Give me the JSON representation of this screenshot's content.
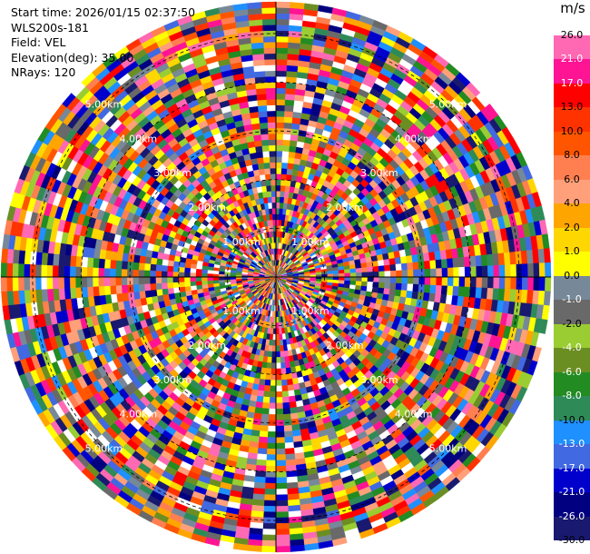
{
  "info": {
    "start_time": "Start time: 2026/01/15 02:37:50",
    "instrument": "WLS200s-181",
    "field": "Field: VEL",
    "elevation": "Elevation(deg): 35.00",
    "nrays": "NRays: 120"
  },
  "colorbar": {
    "unit": "m/s",
    "ticks": [
      "26.0",
      "21.0",
      "17.0",
      "13.0",
      "10.0",
      "8.0",
      "6.0",
      "4.0",
      "2.0",
      "1.0",
      "0.0",
      "-1.0",
      "-2.0",
      "-4.0",
      "-6.0",
      "-8.0",
      "-10.0",
      "-13.0",
      "-17.0",
      "-21.0",
      "-26.0",
      "-30.0"
    ],
    "colors": [
      "#ff69b4",
      "#ff1493",
      "#ff0000",
      "#ff3300",
      "#ff5500",
      "#ff7f50",
      "#ffa07a",
      "#ffa500",
      "#ffd700",
      "#ffff00",
      "#778899",
      "#696969",
      "#9acd32",
      "#6b8e23",
      "#228b22",
      "#2e8b57",
      "#1e90ff",
      "#4169e1",
      "#0000cd",
      "#000080",
      "#191970"
    ]
  },
  "chart_data": {
    "type": "heatmap",
    "projection": "polar-ppi",
    "field": "VEL",
    "nrays": 120,
    "range_rings_km": [
      1.0,
      2.0,
      3.0,
      4.0,
      5.0
    ],
    "ring_labels": [
      "1.00km",
      "2.00km",
      "3.00km",
      "4.00km",
      "5.00km"
    ],
    "value_range": [
      -30.0,
      30.0
    ],
    "pattern": "noise"
  }
}
